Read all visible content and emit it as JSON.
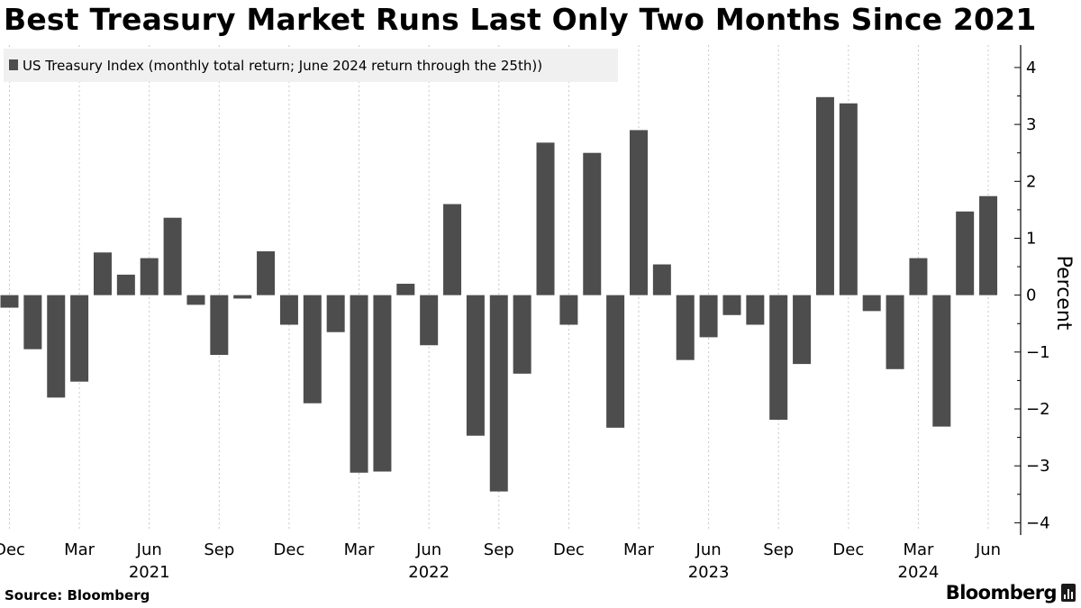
{
  "header": {
    "title": "Best Treasury Market Runs Last Only Two Months Since 2021"
  },
  "footer": {
    "source": "Source: Bloomberg",
    "brand": "Bloomberg"
  },
  "chart_data": {
    "type": "bar",
    "title": "Best Treasury Market Runs Last Only Two Months Since 2021",
    "ylabel": "Percent",
    "xlabel": "",
    "ylim": [
      -4.2,
      4.3
    ],
    "y_ticks": [
      4,
      3,
      2,
      1,
      0,
      -1,
      -2,
      -3,
      -4
    ],
    "grid": "vertical dashed at month labels",
    "legend": {
      "position": "top-left"
    },
    "categories": [
      "2020-12",
      "2021-01",
      "2021-02",
      "2021-03",
      "2021-04",
      "2021-05",
      "2021-06",
      "2021-07",
      "2021-08",
      "2021-09",
      "2021-10",
      "2021-11",
      "2021-12",
      "2022-01",
      "2022-02",
      "2022-03",
      "2022-04",
      "2022-05",
      "2022-06",
      "2022-07",
      "2022-08",
      "2022-09",
      "2022-10",
      "2022-11",
      "2022-12",
      "2023-01",
      "2023-02",
      "2023-03",
      "2023-04",
      "2023-05",
      "2023-06",
      "2023-07",
      "2023-08",
      "2023-09",
      "2023-10",
      "2023-11",
      "2023-12",
      "2024-01",
      "2024-02",
      "2024-03",
      "2024-04",
      "2024-05",
      "2024-06"
    ],
    "series": [
      {
        "name": "US Treasury Index (monthly total return; June 2024 return through the 25th))",
        "color": "#4d4d4d",
        "values": [
          -0.22,
          -0.95,
          -1.8,
          -1.52,
          0.75,
          0.36,
          0.65,
          1.36,
          -0.17,
          -1.05,
          -0.06,
          0.77,
          -0.52,
          -1.9,
          -0.65,
          -3.12,
          -3.1,
          0.2,
          -0.88,
          1.6,
          -2.47,
          -3.45,
          -1.38,
          2.68,
          -0.52,
          2.5,
          -2.33,
          2.9,
          0.54,
          -1.14,
          -0.74,
          -0.35,
          -0.52,
          -2.19,
          -1.21,
          3.48,
          3.37,
          -0.28,
          -1.3,
          0.65,
          -2.31,
          1.47,
          1.74
        ]
      }
    ],
    "x_axis_labels": [
      {
        "month": "Dec",
        "year": "",
        "index": 0
      },
      {
        "month": "Mar",
        "year": "",
        "index": 3
      },
      {
        "month": "Jun",
        "year": "2021",
        "index": 6
      },
      {
        "month": "Sep",
        "year": "",
        "index": 9
      },
      {
        "month": "Dec",
        "year": "",
        "index": 12
      },
      {
        "month": "Mar",
        "year": "",
        "index": 15
      },
      {
        "month": "Jun",
        "year": "2022",
        "index": 18
      },
      {
        "month": "Sep",
        "year": "",
        "index": 21
      },
      {
        "month": "Dec",
        "year": "",
        "index": 24
      },
      {
        "month": "Mar",
        "year": "",
        "index": 27
      },
      {
        "month": "Jun",
        "year": "2023",
        "index": 30
      },
      {
        "month": "Sep",
        "year": "",
        "index": 33
      },
      {
        "month": "Dec",
        "year": "",
        "index": 36
      },
      {
        "month": "Mar",
        "year": "2024",
        "index": 39
      },
      {
        "month": "Jun",
        "year": "",
        "index": 42
      }
    ]
  }
}
